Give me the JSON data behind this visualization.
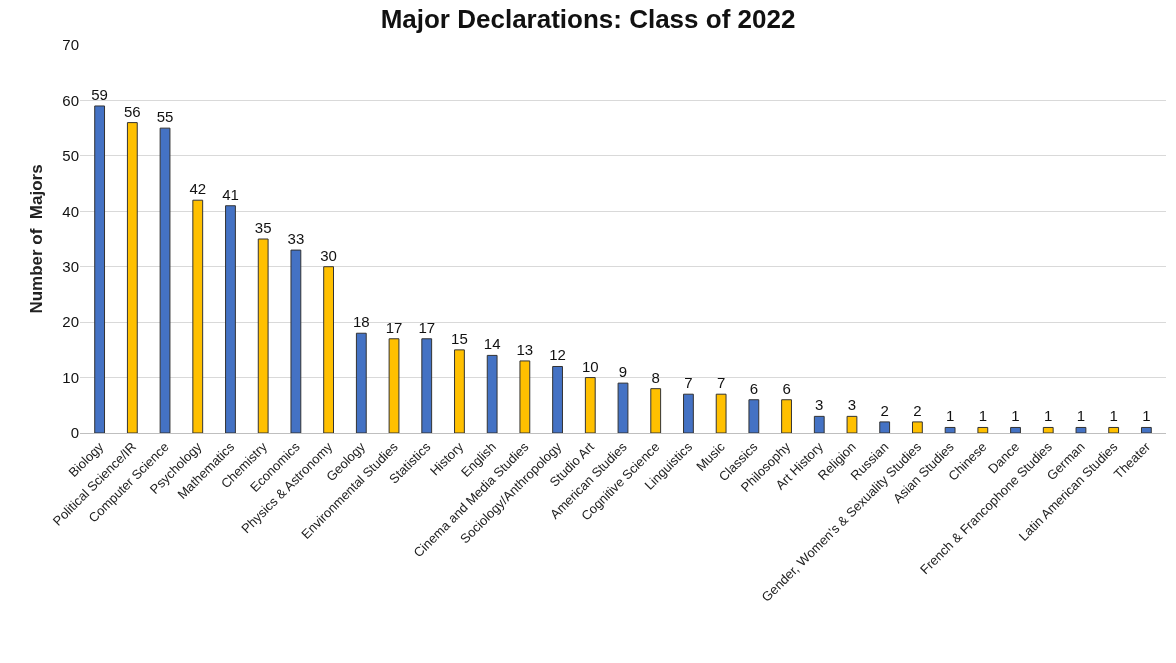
{
  "chart_data": {
    "type": "bar",
    "title": "Major Declarations: Class of 2022",
    "ylabel": "Number of  Majors",
    "categories": [
      "Biology",
      "Political Science/IR",
      "Computer Science",
      "Psychology",
      "Mathematics",
      "Chemistry",
      "Economics",
      "Physics & Astronomy",
      "Geology",
      "Environmental Studies",
      "Statistics",
      "History",
      "English",
      "Cinema and Media Studies",
      "Sociology/Anthropology",
      "Studio Art",
      "American Studies",
      "Cognitive Science",
      "Linguistics",
      "Music",
      "Classics",
      "Philosophy",
      "Art History",
      "Religion",
      "Russian",
      "Gender, Women's & Sexuality Studies",
      "Asian Studies",
      "Chinese",
      "Dance",
      "French & Francophone Studies",
      "German",
      "Latin American Studies",
      "Theater"
    ],
    "values": [
      59,
      56,
      55,
      42,
      41,
      35,
      33,
      30,
      18,
      17,
      17,
      15,
      14,
      13,
      12,
      10,
      9,
      8,
      7,
      7,
      6,
      6,
      3,
      3,
      2,
      2,
      1,
      1,
      1,
      1,
      1,
      1,
      1
    ],
    "colors": [
      "#4472c4",
      "#ffc000",
      "#4472c4",
      "#ffc000",
      "#4472c4",
      "#ffc000",
      "#4472c4",
      "#ffc000",
      "#4472c4",
      "#ffc000",
      "#4472c4",
      "#ffc000",
      "#4472c4",
      "#ffc000",
      "#4472c4",
      "#ffc000",
      "#4472c4",
      "#ffc000",
      "#4472c4",
      "#ffc000",
      "#4472c4",
      "#ffc000",
      "#4472c4",
      "#ffc000",
      "#4472c4",
      "#ffc000",
      "#4472c4",
      "#ffc000",
      "#4472c4",
      "#ffc000",
      "#4472c4",
      "#ffc000",
      "#4472c4"
    ],
    "ylim": [
      0,
      70
    ],
    "yticks": [
      0,
      10,
      20,
      30,
      40,
      50,
      60,
      70
    ],
    "grid": "y",
    "data_labels": true
  }
}
